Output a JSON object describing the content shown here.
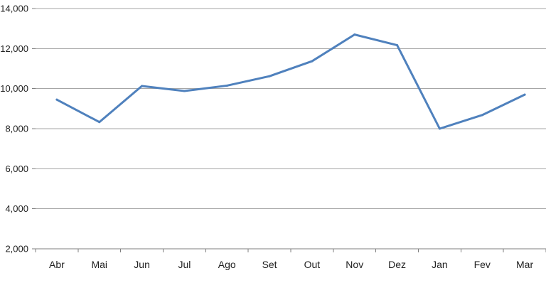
{
  "chart_data": {
    "type": "line",
    "title": "",
    "xlabel": "",
    "ylabel": "",
    "categories": [
      "Abr",
      "Mai",
      "Jun",
      "Jul",
      "Ago",
      "Set",
      "Out",
      "Nov",
      "Dez",
      "Jan",
      "Fev",
      "Mar"
    ],
    "series": [
      {
        "values": [
          9450,
          8330,
          10130,
          9880,
          10150,
          10620,
          11370,
          12700,
          12170,
          8000,
          8680,
          9700
        ],
        "color": "#4f81bd"
      }
    ],
    "ylim": [
      2000,
      14000
    ],
    "yticks": [
      2000,
      4000,
      6000,
      8000,
      10000,
      12000,
      14000
    ],
    "ytick_labels": [
      "2,000",
      "4,000",
      "6,000",
      "8,000",
      "10,000",
      "12,000",
      "14,000"
    ],
    "grid": true,
    "legend": "none",
    "colors": {
      "gridline": "#a6a6a6",
      "axis": "#7f7f7f"
    }
  }
}
